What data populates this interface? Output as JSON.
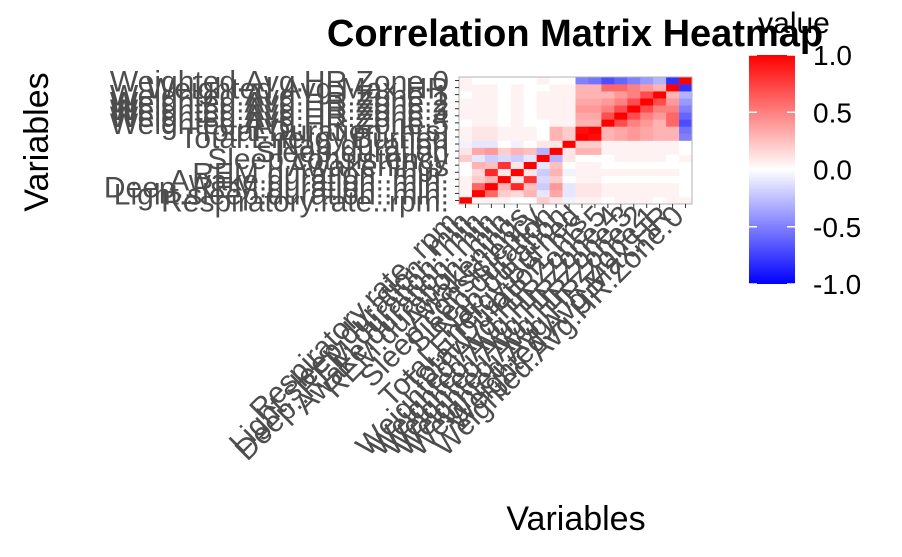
{
  "chart_data": {
    "type": "heatmap",
    "title": "Correlation Matrix Heatmap",
    "xlabel": "Variables",
    "ylabel": "Variables",
    "legend": {
      "title": "value",
      "position": "right",
      "ticks": [
        "1.0",
        "0.5",
        "0.0",
        "-0.5",
        "-1.0"
      ],
      "tick_values": [
        1.0,
        0.5,
        0.0,
        -0.5,
        -1.0
      ],
      "range": [
        -1,
        1
      ],
      "low_color": "#0000ff",
      "mid_color": "#ffffff",
      "high_color": "#ff0000"
    },
    "variables": [
      "Respiratory.rate..rpm.",
      "Light.sleep.duration..min.",
      "Deep..REM.duration..min.",
      "Awake.duration..min.",
      "REM.duration..min.",
      "Awakenings",
      "Sleep.consistency",
      "Sleep.duration",
      "Nap.duration",
      "Total.Energy.Burned",
      "Total.Duration..hrs.",
      "Weighted.Avg.HR.Zone.5",
      "Weighted.Avg.HR.Zone.4",
      "Weighted.Avg.HR.Zone.3",
      "Weighted.Avg.HR.Zone.2",
      "Weighted.Avg.HR.Zone.1",
      "Weighted.Avg.Max.HR",
      "Weighted.Avg.HR.Zone.0"
    ],
    "values": [
      [
        1.0,
        0.05,
        0.05,
        0.05,
        0.0,
        0.0,
        0.2,
        0.1,
        -0.05,
        0.05,
        0.05,
        0.0,
        0.05,
        0.05,
        0.05,
        0.0,
        0.05,
        0.05
      ],
      [
        0.05,
        1.0,
        0.6,
        0.2,
        0.15,
        0.3,
        -0.1,
        0.35,
        -0.1,
        0.1,
        0.1,
        0.05,
        0.05,
        0.05,
        0.05,
        0.05,
        0.05,
        0.0
      ],
      [
        0.05,
        0.6,
        1.0,
        0.3,
        0.85,
        0.25,
        -0.2,
        0.4,
        -0.1,
        0.1,
        0.1,
        0.05,
        0.05,
        0.05,
        0.05,
        0.05,
        0.05,
        0.0
      ],
      [
        0.05,
        0.2,
        0.3,
        1.0,
        0.1,
        0.8,
        -0.15,
        0.2,
        0.0,
        0.05,
        0.05,
        0.0,
        0.0,
        0.0,
        0.0,
        0.0,
        0.0,
        0.0
      ],
      [
        0.0,
        0.15,
        0.85,
        0.1,
        1.0,
        0.1,
        -0.2,
        0.3,
        -0.05,
        0.05,
        0.05,
        0.05,
        0.05,
        0.05,
        0.05,
        0.05,
        0.05,
        0.0
      ],
      [
        0.0,
        0.3,
        0.25,
        0.8,
        0.1,
        1.0,
        -0.1,
        0.25,
        0.0,
        0.05,
        0.05,
        0.0,
        0.0,
        0.0,
        0.0,
        0.0,
        0.0,
        0.0
      ],
      [
        0.2,
        -0.1,
        -0.2,
        -0.15,
        -0.2,
        -0.1,
        1.0,
        -0.3,
        0.1,
        0.0,
        0.0,
        0.0,
        0.05,
        0.05,
        0.05,
        0.05,
        0.0,
        0.05
      ],
      [
        0.1,
        0.35,
        0.4,
        0.2,
        0.3,
        0.25,
        -0.3,
        1.0,
        0.1,
        0.3,
        0.3,
        0.05,
        0.05,
        0.05,
        0.05,
        0.05,
        0.05,
        0.0
      ],
      [
        -0.05,
        -0.1,
        -0.1,
        0.0,
        -0.05,
        0.0,
        0.1,
        0.1,
        1.0,
        0.2,
        0.2,
        0.05,
        0.05,
        0.05,
        0.05,
        0.05,
        0.05,
        0.0
      ],
      [
        0.05,
        0.1,
        0.1,
        0.05,
        0.05,
        0.05,
        0.0,
        0.3,
        0.2,
        1.0,
        0.95,
        0.3,
        0.35,
        0.4,
        0.35,
        0.3,
        0.3,
        -0.5
      ],
      [
        0.05,
        0.1,
        0.1,
        0.05,
        0.05,
        0.05,
        0.0,
        0.3,
        0.2,
        0.95,
        1.0,
        0.3,
        0.35,
        0.4,
        0.35,
        0.3,
        0.3,
        -0.55
      ],
      [
        0.0,
        0.05,
        0.05,
        0.0,
        0.05,
        0.0,
        0.0,
        0.05,
        0.05,
        0.3,
        0.3,
        1.0,
        0.7,
        0.5,
        0.4,
        0.3,
        0.6,
        -0.7
      ],
      [
        0.05,
        0.05,
        0.05,
        0.0,
        0.05,
        0.0,
        0.05,
        0.05,
        0.05,
        0.35,
        0.35,
        0.7,
        1.0,
        0.7,
        0.5,
        0.4,
        0.6,
        -0.6
      ],
      [
        0.05,
        0.05,
        0.05,
        0.0,
        0.05,
        0.0,
        0.05,
        0.05,
        0.05,
        0.4,
        0.4,
        0.5,
        0.7,
        1.0,
        0.7,
        0.5,
        0.5,
        -0.5
      ],
      [
        0.05,
        0.05,
        0.05,
        0.0,
        0.05,
        0.0,
        0.05,
        0.05,
        0.05,
        0.35,
        0.35,
        0.4,
        0.5,
        0.7,
        1.0,
        0.7,
        0.4,
        -0.4
      ],
      [
        0.0,
        0.05,
        0.05,
        0.0,
        0.05,
        0.0,
        0.05,
        0.05,
        0.05,
        0.3,
        0.3,
        0.3,
        0.4,
        0.5,
        0.7,
        1.0,
        0.3,
        -0.3
      ],
      [
        0.05,
        0.05,
        0.05,
        0.0,
        0.05,
        0.0,
        0.0,
        0.05,
        0.05,
        0.3,
        0.3,
        0.6,
        0.6,
        0.5,
        0.4,
        0.3,
        1.0,
        -0.8
      ],
      [
        0.05,
        0.0,
        0.0,
        0.0,
        0.0,
        0.0,
        0.05,
        0.0,
        0.0,
        -0.5,
        -0.55,
        -0.7,
        -0.6,
        -0.5,
        -0.4,
        -0.3,
        -0.8,
        1.0
      ]
    ]
  }
}
